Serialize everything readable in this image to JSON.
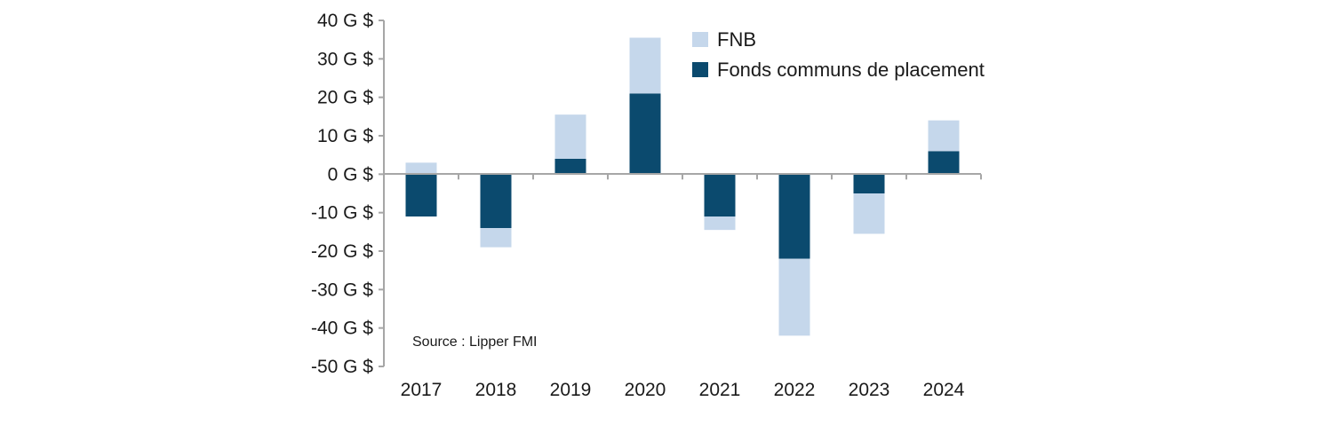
{
  "chart_data": {
    "type": "bar",
    "stacked": true,
    "categories": [
      "2017",
      "2018",
      "2019",
      "2020",
      "2021",
      "2022",
      "2023",
      "2024"
    ],
    "series": [
      {
        "name": "Fonds communs de placement",
        "color": "#0b4a6e",
        "values": [
          -11,
          -14,
          4,
          21,
          -11,
          -22,
          -5,
          6
        ]
      },
      {
        "name": "FNB",
        "color": "#c5d7eb",
        "values": [
          3,
          -5,
          11.5,
          14.5,
          -3.5,
          -20,
          -10.5,
          8
        ]
      }
    ],
    "ylim": [
      -50,
      40
    ],
    "yticks": [
      40,
      30,
      20,
      10,
      0,
      -10,
      -20,
      -30,
      -40,
      -50
    ],
    "ytick_labels": [
      "40 G $",
      "30 G $",
      "20 G $",
      "10 G $",
      "0 G $",
      "-10 G $",
      "-20 G $",
      "-30 G $",
      "-40 G $",
      "-50 G $"
    ],
    "legend": {
      "position": "top-right",
      "entries": [
        "FNB",
        "Fonds communs de placement"
      ]
    },
    "annotation": "Source : Lipper FMI",
    "grid": false
  }
}
